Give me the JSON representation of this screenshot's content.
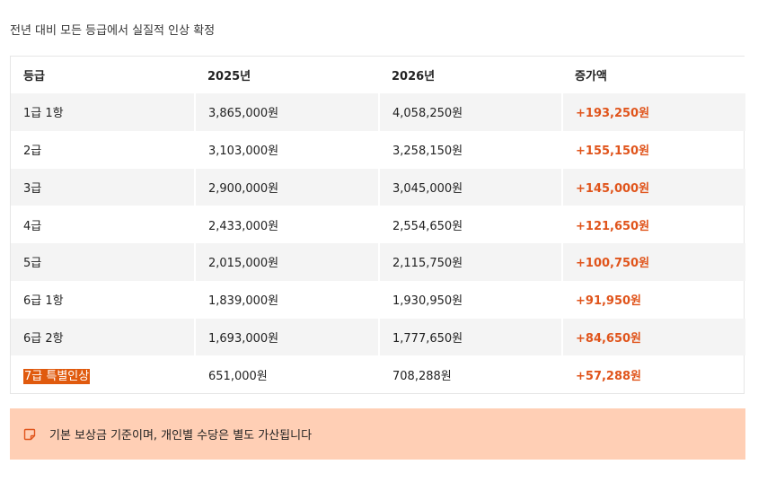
{
  "subtitle": "전년 대비 모든 등급에서 실질적 인상 확정",
  "table": {
    "headers": [
      "등급",
      "2025년",
      "2026년",
      "증가액"
    ],
    "rows": [
      {
        "grade": "1급 1항",
        "y2025": "3,865,000원",
        "y2026": "4,058,250원",
        "increase": "+193,250원"
      },
      {
        "grade": "2급",
        "y2025": "3,103,000원",
        "y2026": "3,258,150원",
        "increase": "+155,150원"
      },
      {
        "grade": "3급",
        "y2025": "2,900,000원",
        "y2026": "3,045,000원",
        "increase": "+145,000원"
      },
      {
        "grade": "4급",
        "y2025": "2,433,000원",
        "y2026": "2,554,650원",
        "increase": "+121,650원"
      },
      {
        "grade": "5급",
        "y2025": "2,015,000원",
        "y2026": "2,115,750원",
        "increase": "+100,750원"
      },
      {
        "grade": "6급 1항",
        "y2025": "1,839,000원",
        "y2026": "1,930,950원",
        "increase": "+91,950원"
      },
      {
        "grade": "6급 2항",
        "y2025": "1,693,000원",
        "y2026": "1,777,650원",
        "increase": "+84,650원"
      },
      {
        "grade": "7급 특별인상",
        "y2025": "651,000원",
        "y2026": "708,288원",
        "increase": "+57,288원"
      }
    ]
  },
  "note": {
    "icon": "note-icon",
    "text": "기본 보상금 기준이며, 개인별 수당은 별도 가산됩니다"
  },
  "colors": {
    "accent": "#e0541b",
    "highlight": "#e05a0e",
    "note_bg": "#ffcfb5",
    "row_alt": "#f4f4f4"
  }
}
